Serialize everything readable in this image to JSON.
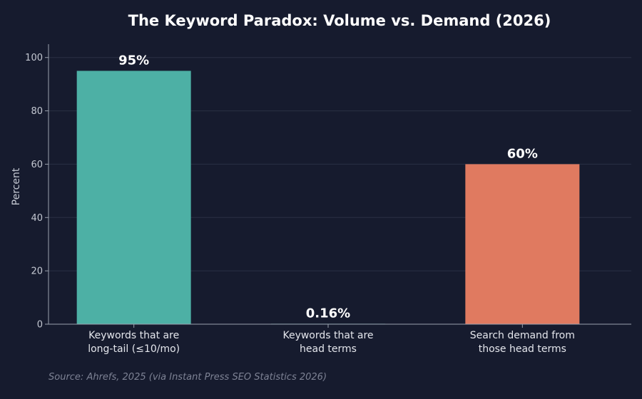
{
  "chart_data": {
    "type": "bar",
    "title": "The Keyword Paradox: Volume vs. Demand (2026)",
    "ylabel": "Percent",
    "xlabel": "",
    "ylim": [
      0,
      105
    ],
    "yticks": [
      0,
      20,
      40,
      60,
      80,
      100
    ],
    "grid": true,
    "categories": [
      [
        "Keywords that are",
        "long-tail (≤10/mo)"
      ],
      [
        "Keywords that are",
        "head terms"
      ],
      [
        "Search demand from",
        "those head terms"
      ]
    ],
    "values": [
      95,
      0.16,
      60
    ],
    "value_labels": [
      "95%",
      "0.16%",
      "60%"
    ],
    "colors": [
      "#4db0a5",
      "#4db0a5",
      "#e07a60"
    ],
    "source": "Source: Ahrefs, 2025 (via Instant Press SEO Statistics 2026)"
  }
}
